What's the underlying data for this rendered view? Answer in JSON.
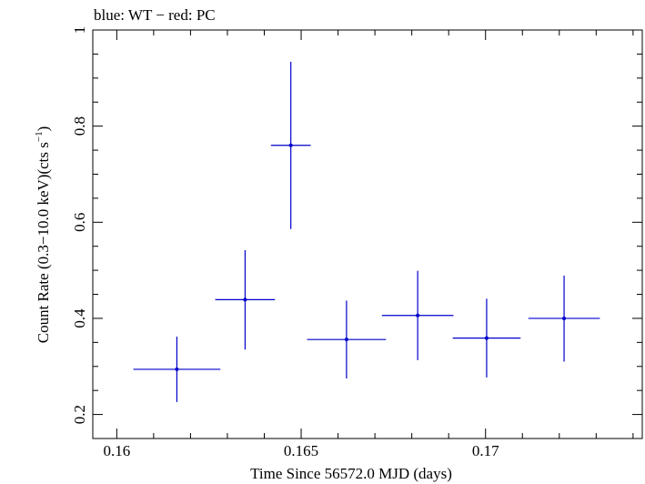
{
  "chart_data": {
    "type": "scatter",
    "title": "blue: WT − red: PC",
    "xlabel": "Time Since 56572.0 MJD (days)",
    "ylabel_main": "Count Rate (0.3−10.0 keV)(cts s",
    "ylabel_sup": "−1",
    "ylabel_end": ")",
    "xlim": [
      0.15935,
      0.17425
    ],
    "ylim": [
      0.15,
      1.0
    ],
    "xticks": [
      0.16,
      0.165,
      0.17
    ],
    "xtick_labels": [
      "0.16",
      "0.165",
      "0.17"
    ],
    "yticks": [
      0.2,
      0.4,
      0.6,
      0.8,
      1.0
    ],
    "ytick_labels": [
      "0.2",
      "0.4",
      "0.6",
      "0.8",
      "1"
    ],
    "series": [
      {
        "color": "#0000cc",
        "points": [
          {
            "x": 0.16163,
            "xerr": 0.00118,
            "y": 0.294,
            "yerr": [
              0.068,
              0.068
            ]
          },
          {
            "x": 0.16348,
            "xerr": 0.00081,
            "y": 0.439,
            "yerr": [
              0.104,
              0.103
            ]
          },
          {
            "x": 0.16472,
            "xerr": 0.00054,
            "y": 0.76,
            "yerr": [
              0.174,
              0.174
            ]
          },
          {
            "x": 0.16623,
            "xerr": 0.00107,
            "y": 0.356,
            "yerr": [
              0.081,
              0.081
            ]
          },
          {
            "x": 0.16816,
            "xerr": 0.00097,
            "y": 0.406,
            "yerr": [
              0.093,
              0.093
            ]
          },
          {
            "x": 0.17003,
            "xerr": 0.00092,
            "y": 0.359,
            "yerr": [
              0.082,
              0.082
            ]
          },
          {
            "x": 0.17213,
            "xerr": 0.00097,
            "y": 0.4,
            "yerr": [
              0.09,
              0.089
            ]
          }
        ]
      }
    ]
  }
}
